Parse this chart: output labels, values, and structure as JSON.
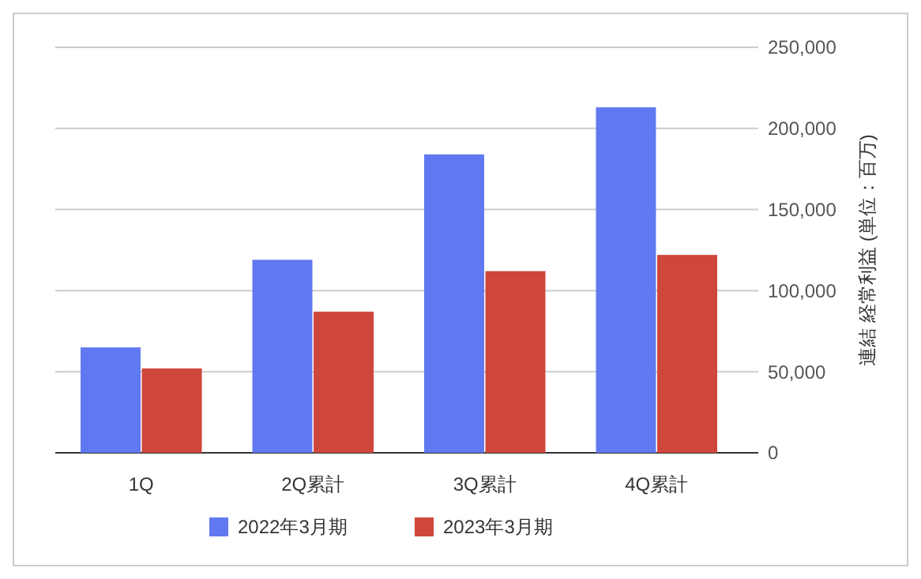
{
  "chart_data": {
    "type": "bar",
    "categories": [
      "1Q",
      "2Q累計",
      "3Q累計",
      "4Q累計"
    ],
    "series": [
      {
        "name": "2022年3月期",
        "color": "#6079f0",
        "values": [
          65000,
          119000,
          184000,
          213000
        ]
      },
      {
        "name": "2023年3月期",
        "color": "#cf463b",
        "values": [
          52000,
          87000,
          112000,
          122000
        ]
      }
    ],
    "ylabel": "連結 経常利益 (単位：百万)",
    "ylim": [
      0,
      250000
    ],
    "yticks": [
      {
        "value": 0,
        "label": "0"
      },
      {
        "value": 50000,
        "label": "50,000"
      },
      {
        "value": 100000,
        "label": "100,000"
      },
      {
        "value": 150000,
        "label": "150,000"
      },
      {
        "value": 200000,
        "label": "200,000"
      },
      {
        "value": 250000,
        "label": "250,000"
      }
    ],
    "grid": "y",
    "legend": "bottom"
  }
}
